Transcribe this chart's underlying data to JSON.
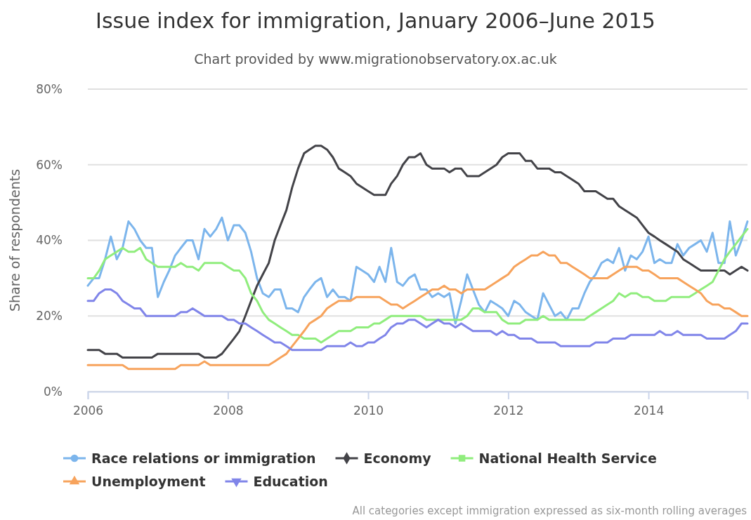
{
  "chart_data": {
    "type": "line",
    "title": "Issue index for immigration, January 2006–June 2015",
    "subtitle": "Chart provided by www.migrationobservatory.ox.ac.uk",
    "ylabel": "Share of respondents",
    "annotations": [
      "All categories except immigration expressed as six-month rolling averages"
    ],
    "x": [
      "2006-01",
      "2006-02",
      "2006-03",
      "2006-04",
      "2006-05",
      "2006-06",
      "2006-07",
      "2006-08",
      "2006-09",
      "2006-10",
      "2006-11",
      "2006-12",
      "2007-01",
      "2007-02",
      "2007-03",
      "2007-04",
      "2007-05",
      "2007-06",
      "2007-07",
      "2007-08",
      "2007-09",
      "2007-10",
      "2007-11",
      "2007-12",
      "2008-01",
      "2008-02",
      "2008-03",
      "2008-04",
      "2008-05",
      "2008-06",
      "2008-07",
      "2008-08",
      "2008-09",
      "2008-10",
      "2008-11",
      "2008-12",
      "2009-01",
      "2009-02",
      "2009-03",
      "2009-04",
      "2009-05",
      "2009-06",
      "2009-07",
      "2009-08",
      "2009-09",
      "2009-10",
      "2009-11",
      "2009-12",
      "2010-01",
      "2010-02",
      "2010-03",
      "2010-04",
      "2010-05",
      "2010-06",
      "2010-07",
      "2010-08",
      "2010-09",
      "2010-10",
      "2010-11",
      "2010-12",
      "2011-01",
      "2011-02",
      "2011-03",
      "2011-04",
      "2011-05",
      "2011-06",
      "2011-07",
      "2011-08",
      "2011-09",
      "2011-10",
      "2011-11",
      "2011-12",
      "2012-01",
      "2012-02",
      "2012-03",
      "2012-04",
      "2012-05",
      "2012-06",
      "2012-07",
      "2012-08",
      "2012-09",
      "2012-10",
      "2012-11",
      "2012-12",
      "2013-01",
      "2013-02",
      "2013-03",
      "2013-04",
      "2013-05",
      "2013-06",
      "2013-07",
      "2013-08",
      "2013-09",
      "2013-10",
      "2013-11",
      "2013-12",
      "2014-01",
      "2014-02",
      "2014-03",
      "2014-04",
      "2014-05",
      "2014-06",
      "2014-07",
      "2014-08",
      "2014-09",
      "2014-10",
      "2014-11",
      "2014-12",
      "2015-01",
      "2015-02",
      "2015-03",
      "2015-04",
      "2015-05",
      "2015-06"
    ],
    "xlim": [
      "2006-01",
      "2015-06"
    ],
    "xticks": [
      {
        "value": "2006-01",
        "label": "2006"
      },
      {
        "value": "2008-01",
        "label": "2008"
      },
      {
        "value": "2010-01",
        "label": "2010"
      },
      {
        "value": "2012-01",
        "label": "2012"
      },
      {
        "value": "2014-01",
        "label": "2014"
      }
    ],
    "ylim": [
      0,
      80
    ],
    "yticks": [
      {
        "value": 0,
        "label": "0%"
      },
      {
        "value": 20,
        "label": "20%"
      },
      {
        "value": 40,
        "label": "40%"
      },
      {
        "value": 60,
        "label": "60%"
      },
      {
        "value": 80,
        "label": "80%"
      }
    ],
    "grid": "y",
    "legend": "bottom",
    "marker": "none",
    "line_style": "solid",
    "series": [
      {
        "name": "Race relations or immigration",
        "color": "#7cb5ec",
        "values": [
          28,
          30,
          30,
          35,
          41,
          35,
          38,
          45,
          43,
          40,
          38,
          38,
          25,
          29,
          32,
          36,
          38,
          40,
          40,
          35,
          43,
          41,
          43,
          46,
          40,
          44,
          44,
          42,
          37,
          30,
          26,
          25,
          27,
          27,
          22,
          22,
          21,
          25,
          27,
          29,
          30,
          25,
          27,
          25,
          25,
          24,
          33,
          32,
          31,
          29,
          33,
          29,
          38,
          29,
          28,
          30,
          31,
          27,
          27,
          25,
          26,
          25,
          26,
          18,
          24,
          31,
          27,
          23,
          21,
          24,
          23,
          22,
          20,
          24,
          23,
          21,
          20,
          19,
          26,
          23,
          20,
          21,
          19,
          22,
          22,
          26,
          29,
          31,
          34,
          35,
          34,
          38,
          32,
          36,
          35,
          37,
          41,
          34,
          35,
          34,
          34,
          39,
          36,
          38,
          39,
          40,
          37,
          42,
          34,
          34,
          45,
          36,
          40,
          45
        ]
      },
      {
        "name": "Economy",
        "color": "#434348",
        "values": [
          11,
          11,
          11,
          10,
          10,
          10,
          9,
          9,
          9,
          9,
          9,
          9,
          10,
          10,
          10,
          10,
          10,
          10,
          10,
          10,
          9,
          9,
          9,
          10,
          12,
          14,
          16,
          20,
          24,
          28,
          31,
          34,
          40,
          44,
          48,
          54,
          59,
          63,
          64,
          65,
          65,
          64,
          62,
          59,
          58,
          57,
          55,
          54,
          53,
          52,
          52,
          52,
          55,
          57,
          60,
          62,
          62,
          63,
          60,
          59,
          59,
          59,
          58,
          59,
          59,
          57,
          57,
          57,
          58,
          59,
          60,
          62,
          63,
          63,
          63,
          61,
          61,
          59,
          59,
          59,
          58,
          58,
          57,
          56,
          55,
          53,
          53,
          53,
          52,
          51,
          51,
          49,
          48,
          47,
          46,
          44,
          42,
          41,
          40,
          39,
          38,
          37,
          35,
          34,
          33,
          32,
          32,
          32,
          32,
          32,
          31,
          32,
          33,
          32
        ]
      },
      {
        "name": "National Health Service",
        "color": "#90ed7d",
        "values": [
          30,
          30,
          32,
          35,
          36,
          37,
          38,
          37,
          37,
          38,
          35,
          34,
          33,
          33,
          33,
          33,
          34,
          33,
          33,
          32,
          34,
          34,
          34,
          34,
          33,
          32,
          32,
          30,
          26,
          24,
          21,
          19,
          18,
          17,
          16,
          15,
          15,
          14,
          14,
          14,
          13,
          14,
          15,
          16,
          16,
          16,
          17,
          17,
          17,
          18,
          18,
          19,
          20,
          20,
          20,
          20,
          20,
          20,
          19,
          19,
          19,
          19,
          19,
          19,
          19,
          20,
          22,
          22,
          21,
          21,
          21,
          19,
          18,
          18,
          18,
          19,
          19,
          19,
          20,
          19,
          19,
          19,
          19,
          19,
          19,
          19,
          20,
          21,
          22,
          23,
          24,
          26,
          25,
          26,
          26,
          25,
          25,
          24,
          24,
          24,
          25,
          25,
          25,
          25,
          26,
          27,
          28,
          29,
          32,
          35,
          37,
          39,
          41,
          43
        ]
      },
      {
        "name": "Unemployment",
        "color": "#f7a35c",
        "values": [
          7,
          7,
          7,
          7,
          7,
          7,
          7,
          6,
          6,
          6,
          6,
          6,
          6,
          6,
          6,
          6,
          7,
          7,
          7,
          7,
          8,
          7,
          7,
          7,
          7,
          7,
          7,
          7,
          7,
          7,
          7,
          7,
          8,
          9,
          10,
          12,
          14,
          16,
          18,
          19,
          20,
          22,
          23,
          24,
          24,
          24,
          25,
          25,
          25,
          25,
          25,
          24,
          23,
          23,
          22,
          23,
          24,
          25,
          26,
          27,
          27,
          28,
          27,
          27,
          26,
          27,
          27,
          27,
          27,
          28,
          29,
          30,
          31,
          33,
          34,
          35,
          36,
          36,
          37,
          36,
          36,
          34,
          34,
          33,
          32,
          31,
          30,
          30,
          30,
          30,
          31,
          32,
          33,
          33,
          33,
          32,
          32,
          31,
          30,
          30,
          30,
          30,
          29,
          28,
          27,
          26,
          24,
          23,
          23,
          22,
          22,
          21,
          20,
          20
        ]
      },
      {
        "name": "Education",
        "color": "#8085e9",
        "values": [
          24,
          24,
          26,
          27,
          27,
          26,
          24,
          23,
          22,
          22,
          20,
          20,
          20,
          20,
          20,
          20,
          21,
          21,
          22,
          21,
          20,
          20,
          20,
          20,
          19,
          19,
          18,
          18,
          17,
          16,
          15,
          14,
          13,
          13,
          12,
          11,
          11,
          11,
          11,
          11,
          11,
          12,
          12,
          12,
          12,
          13,
          12,
          12,
          13,
          13,
          14,
          15,
          17,
          18,
          18,
          19,
          19,
          18,
          17,
          18,
          19,
          18,
          18,
          17,
          18,
          17,
          16,
          16,
          16,
          16,
          15,
          16,
          15,
          15,
          14,
          14,
          14,
          13,
          13,
          13,
          13,
          12,
          12,
          12,
          12,
          12,
          12,
          13,
          13,
          13,
          14,
          14,
          14,
          15,
          15,
          15,
          15,
          15,
          16,
          15,
          15,
          16,
          15,
          15,
          15,
          15,
          14,
          14,
          14,
          14,
          15,
          16,
          18,
          18
        ]
      }
    ]
  }
}
